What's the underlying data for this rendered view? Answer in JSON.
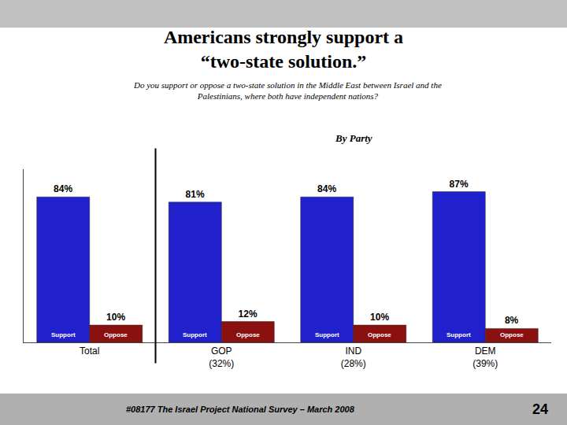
{
  "chart_data": {
    "type": "bar",
    "title": "Americans strongly support a\n“two-state solution.”",
    "subtitle": "Do you support or oppose a two-state solution in the Middle East between Israel and the\nPalestinians, where both have independent nations?",
    "group_heading": "By Party",
    "source": "#08177 The Israel Project National Survey – March 2008",
    "page_number": "24",
    "categories": [
      "Total",
      "GOP\n(32%)",
      "IND\n(28%)",
      "DEM\n(39%)"
    ],
    "series": [
      {
        "name": "Support",
        "color": "#2020cc",
        "values": [
          84,
          81,
          84,
          87
        ],
        "value_labels": [
          "84%",
          "81%",
          "84%",
          "87%"
        ]
      },
      {
        "name": "Oppose",
        "color": "#8b1010",
        "values": [
          10,
          12,
          10,
          8
        ],
        "value_labels": [
          "10%",
          "12%",
          "10%",
          "8%"
        ]
      }
    ],
    "ylim": [
      0,
      100
    ],
    "data_labels": true,
    "tick_labels": "x",
    "grid": false
  }
}
